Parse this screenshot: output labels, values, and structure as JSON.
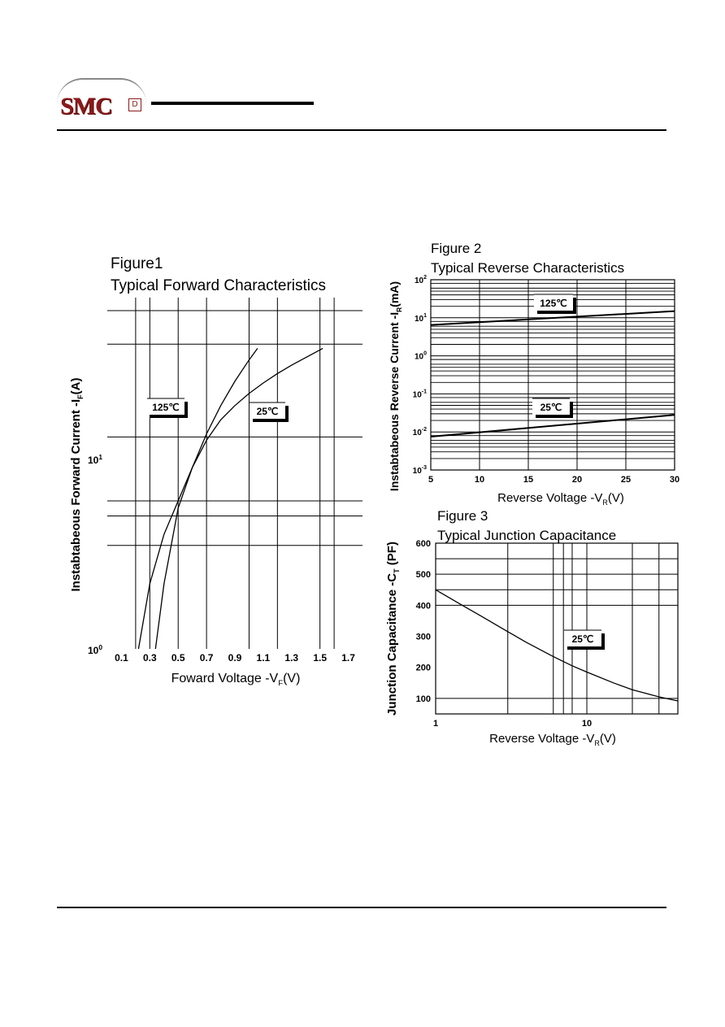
{
  "header": {
    "logo_text": "SMC",
    "logo_mark": "D"
  },
  "chart_data": [
    {
      "type": "line",
      "title": "Figure1",
      "subtitle": "Typical Forward Characteristics",
      "xlabel": "Foward Voltage -V",
      "xlabel_sub": "F",
      "xlabel_unit": "(V)",
      "ylabel": "Instabtabeous Forward Current -I",
      "ylabel_sub": "F",
      "ylabel_unit": "(A)",
      "x_scale": "linear",
      "y_scale": "log",
      "xlim": [
        0.0,
        1.8
      ],
      "ylim": [
        1,
        60
      ],
      "x_ticks": [
        0.1,
        0.3,
        0.5,
        0.7,
        0.9,
        1.1,
        1.3,
        1.5,
        1.7
      ],
      "x_tick_labels": [
        "0.1",
        "0.3",
        "0.5",
        "0.7",
        "0.9",
        "1.1",
        "1.3",
        "1.5",
        "1.7"
      ],
      "y_tick_labels": [
        {
          "value": 1,
          "base": "10",
          "exp": "0"
        },
        {
          "value": 10,
          "base": "10",
          "exp": "1"
        }
      ],
      "v_gridlines": [
        0.2,
        0.3,
        0.5,
        0.7,
        1.0,
        1.2,
        1.5,
        1.6
      ],
      "h_gridlines": [
        3.5,
        5,
        6,
        13,
        40
      ],
      "grid": true,
      "series": [
        {
          "name": "125℃",
          "x": [
            0.22,
            0.3,
            0.4,
            0.5,
            0.6,
            0.7,
            0.8,
            0.9,
            1.0,
            1.06
          ],
          "y": [
            1,
            2.2,
            4.0,
            6.0,
            9.0,
            13.5,
            19.0,
            25.5,
            33.0,
            38.0
          ]
        },
        {
          "name": "25℃",
          "x": [
            0.34,
            0.4,
            0.5,
            0.6,
            0.7,
            0.8,
            0.9,
            1.0,
            1.1,
            1.2,
            1.3,
            1.4,
            1.52
          ],
          "y": [
            1,
            2.2,
            5.5,
            9.0,
            12.5,
            16.0,
            19.0,
            22.0,
            25.0,
            28.0,
            31.0,
            34.0,
            38.0
          ]
        }
      ]
    },
    {
      "type": "line",
      "title": "Figure 2",
      "subtitle": "Typical Reverse Characteristics",
      "xlabel": "Reverse Voltage -V",
      "xlabel_sub": "R",
      "xlabel_unit": "(V)",
      "ylabel": "Instabtabeous Reverse Current -I",
      "ylabel_sub": "R",
      "ylabel_unit": "(mA)",
      "x_scale": "linear",
      "y_scale": "log",
      "xlim": [
        5,
        30
      ],
      "ylim": [
        0.001,
        100
      ],
      "x_ticks": [
        5,
        10,
        15,
        20,
        25,
        30
      ],
      "x_tick_labels": [
        "5",
        "10",
        "15",
        "20",
        "25",
        "30"
      ],
      "y_tick_labels": [
        {
          "value": 100,
          "base": "10",
          "exp": "2"
        },
        {
          "value": 10,
          "base": "10",
          "exp": "1"
        },
        {
          "value": 1,
          "base": "10",
          "exp": "0"
        },
        {
          "value": 0.1,
          "base": "10",
          "exp": "-1"
        },
        {
          "value": 0.01,
          "base": "10",
          "exp": "-2"
        },
        {
          "value": 0.001,
          "base": "10",
          "exp": "-3"
        }
      ],
      "grid": true,
      "series": [
        {
          "name": "125℃",
          "x": [
            5,
            30
          ],
          "y": [
            6.5,
            15
          ]
        },
        {
          "name": "25℃",
          "x": [
            5,
            30
          ],
          "y": [
            0.0075,
            0.028
          ]
        }
      ]
    },
    {
      "type": "line",
      "title": "Figure 3",
      "subtitle": "Typical Junction Capacitance",
      "xlabel": "Reverse Voltage -V",
      "xlabel_sub": "R",
      "xlabel_unit": "(V)",
      "ylabel": "Junction Capacitance -C",
      "ylabel_sub": "T",
      "ylabel_unit": " (PF)",
      "x_scale": "log",
      "y_scale": "linear",
      "xlim": [
        1,
        40
      ],
      "ylim": [
        50,
        600
      ],
      "x_ticks": [
        1,
        10
      ],
      "x_tick_labels": [
        "1",
        "10"
      ],
      "y_ticks": [
        100,
        200,
        300,
        400,
        500,
        600
      ],
      "y_tick_labels": [
        "100",
        "200",
        "300",
        "400",
        "500",
        "600"
      ],
      "grid": true,
      "series": [
        {
          "name": "25℃",
          "x": [
            1,
            1.5,
            2,
            3,
            4,
            5,
            6,
            8,
            10,
            15,
            20,
            30,
            40
          ],
          "y": [
            450,
            400,
            365,
            315,
            280,
            255,
            235,
            205,
            185,
            150,
            128,
            105,
            92
          ]
        }
      ]
    }
  ]
}
